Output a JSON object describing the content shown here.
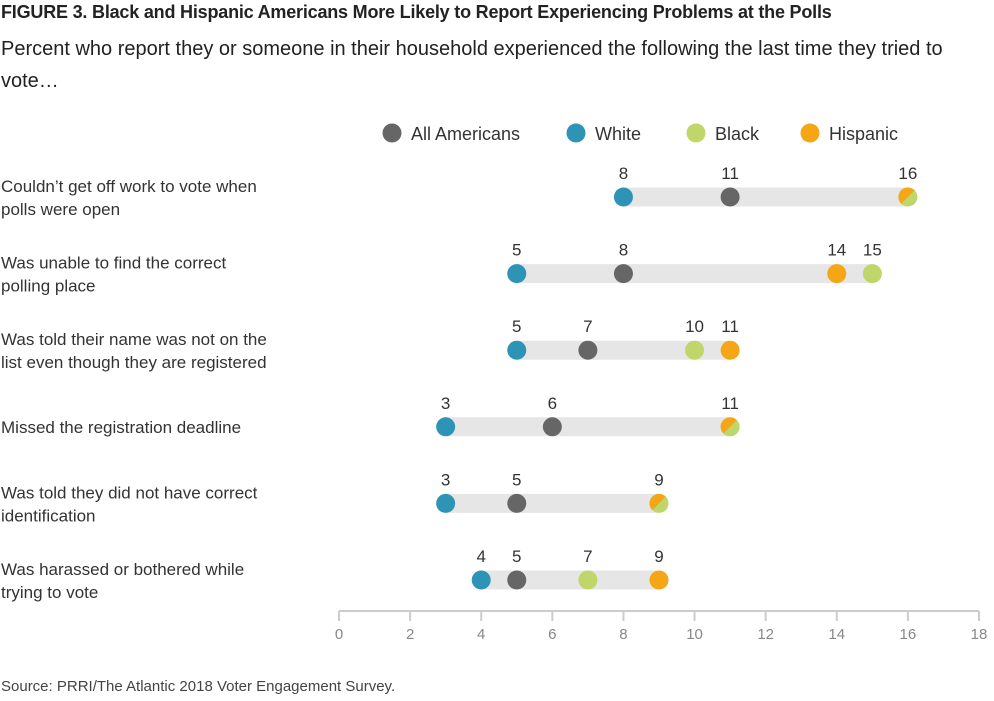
{
  "title": "FIGURE 3. Black and Hispanic Americans More Likely to Report Experiencing Problems at the Polls",
  "subtitle": "Percent who report they or someone in their household experienced the following the last time they tried to vote…",
  "source": "Source: PRRI/The Atlantic 2018 Voter Engagement Survey.",
  "chart_data": {
    "type": "dot",
    "title": "",
    "xlabel": "",
    "ylabel": "",
    "xlim": [
      0,
      18
    ],
    "xticks": [
      0,
      2,
      4,
      6,
      8,
      10,
      12,
      14,
      16,
      18
    ],
    "grid": false,
    "legend_position": "top",
    "categories": [
      [
        "Couldn’t get off work to vote when",
        "polls were open"
      ],
      [
        "Was unable to find the correct",
        "polling place"
      ],
      [
        "Was told their name was not on the",
        "list even though they are registered"
      ],
      [
        "Missed the registration deadline"
      ],
      [
        "Was told they did not have correct",
        "identification"
      ],
      [
        "Was harassed or bothered while",
        "trying to vote"
      ]
    ],
    "series": [
      {
        "name": "All Americans",
        "color": "#666666",
        "values": [
          11,
          8,
          7,
          6,
          5,
          5
        ]
      },
      {
        "name": "White",
        "color": "#2e94b6",
        "values": [
          8,
          5,
          5,
          3,
          3,
          4
        ]
      },
      {
        "name": "Black",
        "color": "#bfd66a",
        "values": [
          16,
          15,
          10,
          11,
          9,
          7
        ]
      },
      {
        "name": "Hispanic",
        "color": "#f5a617",
        "values": [
          16,
          14,
          11,
          11,
          9,
          9
        ]
      }
    ],
    "track_color": "#e6e6e6",
    "axis_color": "#cccccc"
  }
}
